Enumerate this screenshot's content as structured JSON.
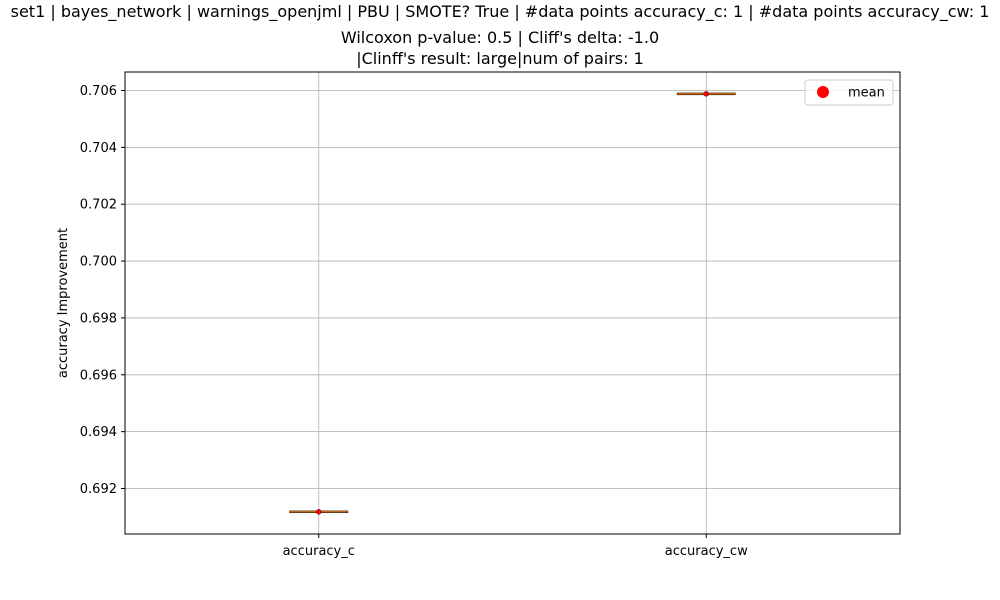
{
  "chart_data": {
    "type": "box",
    "title_lines": [
      "set1 | bayes_network | warnings_openjml | PBU | SMOTE? True | #data points accuracy_c: 1 | #data points accuracy_cw: 1",
      "Wilcoxon p-value: 0.5 | Cliff's delta: -1.0",
      "|Clinff's result: large|num of pairs: 1"
    ],
    "ylabel": "accuracy Improvement",
    "xlabel": "",
    "categories": [
      "accuracy_c",
      "accuracy_cw"
    ],
    "values": [
      0.69118,
      0.70588
    ],
    "means": [
      0.69118,
      0.70588
    ],
    "ylim": [
      0.6904,
      0.70665
    ],
    "yticks": [
      0.692,
      0.694,
      0.696,
      0.698,
      0.7,
      0.702,
      0.704,
      0.706
    ],
    "ytick_labels": [
      "0.692",
      "0.694",
      "0.696",
      "0.698",
      "0.700",
      "0.702",
      "0.704",
      "0.706"
    ],
    "grid": true,
    "legend": {
      "placement": "top-right",
      "entries": [
        "mean"
      ]
    },
    "colors": {
      "mean": "#ff0000",
      "median": "#ff7f0e",
      "grid": "#b0b0b0"
    }
  }
}
